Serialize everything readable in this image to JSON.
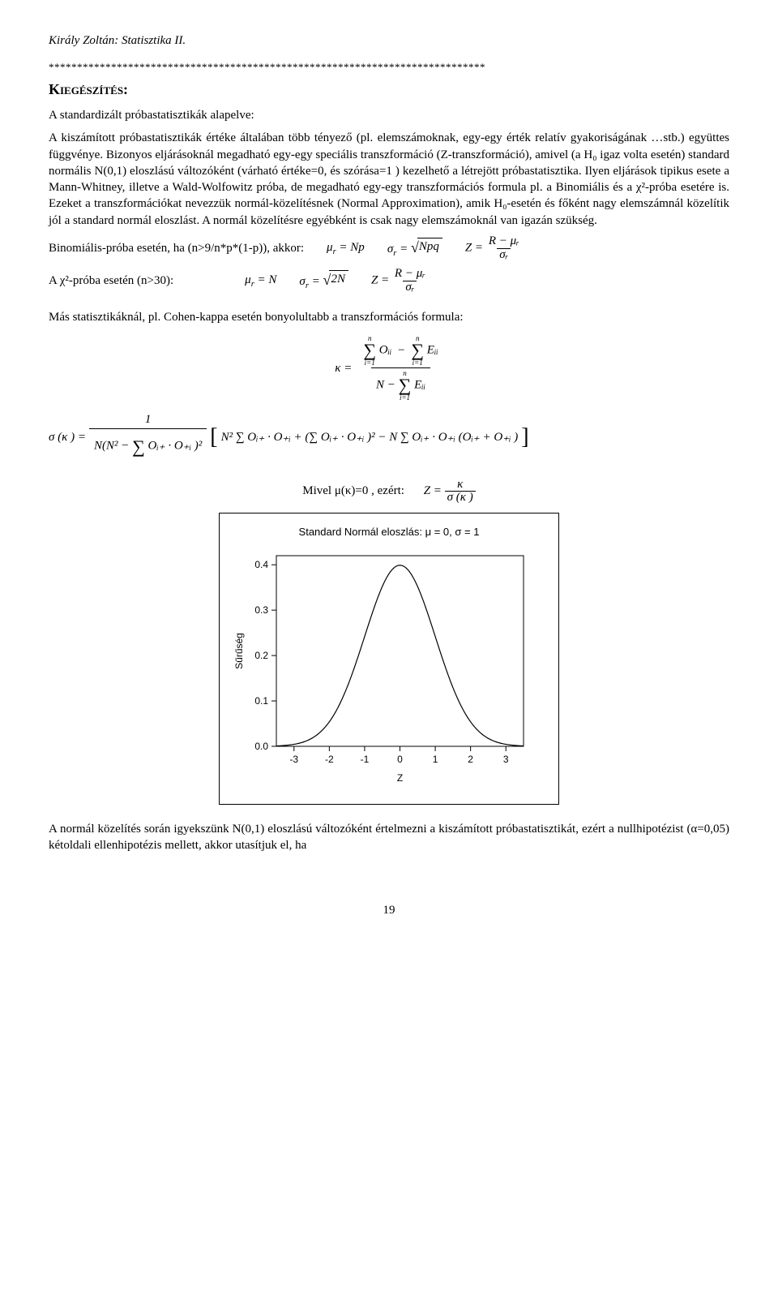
{
  "header": {
    "running_title": "Király Zoltán: Statisztika II."
  },
  "sep": {
    "stars": "*****************************************************************************"
  },
  "section": {
    "title": "Kiegészítés:"
  },
  "intro": {
    "line1": "A standardizált próbastatisztikák alapelve:",
    "body": "A kiszámított próbastatisztikák értéke általában több tényező (pl. elemszámoknak, egy-egy érték relatív gyakoriságának …stb.) együttes függvénye. Bizonyos eljárásoknál megadható egy-egy speciális transzformáció (Z-transzformáció), amivel (a H₀ igaz volta esetén) standard normális N(0,1) eloszlású változóként (várható értéke=0, és szórása=1 ) kezelhető a létrejött próbastatisztika. Ilyen eljárások tipikus esete a Mann-Whitney, illetve a Wald-Wolfowitz próba, de megadható egy-egy transzformációs formula pl. a Binomiális és a χ²-próba esetére is. Ezeket a transzformációkat nevezzük normál-közelítésnek (Normal Approximation), amik H₀-esetén és főként nagy elemszámnál közelítik jól a standard normál eloszlást. A normál közelítésre egyébként is csak nagy elemszámoknál van igazán szükség."
  },
  "binom": {
    "lead": "Binomiális-próba esetén, ha (n>9/n*p*(1-p)), akkor:",
    "mu": "μ",
    "mu_sub": "r",
    "mu_eq": "= Np",
    "sigma": "σ",
    "sigma_sub": "r",
    "sigma_eq_rad": "Npq",
    "Z": "Z =",
    "Z_num": "R − μᵣ",
    "Z_den": "σᵣ"
  },
  "chi": {
    "lead": "A χ²-próba esetén (n>30):",
    "mu": "μ",
    "mu_sub": "r",
    "mu_eq": "= N",
    "sigma": "σ",
    "sigma_sub": "r",
    "sigma_rad": "2N",
    "Z": "Z =",
    "Z_num": "R − μᵣ",
    "Z_den": "σᵣ"
  },
  "other": {
    "lead": "Más statisztikáknál, pl. Cohen-kappa esetén bonyolultabb a transzformációs formula:"
  },
  "kappa": {
    "lhs": "κ =",
    "num_a_top": "n",
    "num_a_bot": "i=1",
    "num_a_body": "Oᵢᵢ",
    "minus": "−",
    "num_b_top": "n",
    "num_b_bot": "i=1",
    "num_b_body": "Eᵢᵢ",
    "den_lead": "N −",
    "den_top": "n",
    "den_bot": "i=1",
    "den_body": "Eᵢᵢ"
  },
  "sigmakappa": {
    "lhs": "σ (κ ) =",
    "frac_num": "1",
    "frac_den_a": "N(N² −",
    "frac_den_sum": "Oᵢ₊ · O₊ᵢ )²",
    "br_a": "N² ∑ Oᵢ₊ · O₊ᵢ + (∑ Oᵢ₊ · O₊ᵢ )² − N ∑ Oᵢ₊ · O₊ᵢ (Oᵢ₊ + O₊ᵢ )"
  },
  "mivel": {
    "lead": "Mivel μ(κ)=0 , ezért:",
    "Z": "Z =",
    "num": "κ",
    "den": "σ (κ )"
  },
  "chart": {
    "title_a": "Standard Normál eloszlás: ",
    "title_b": "μ",
    "title_c": " = 0, ",
    "title_d": "σ",
    "title_e": " = 1",
    "ylabel": "Sűrűség",
    "xlabel": "Z",
    "xticks": [
      "-3",
      "-2",
      "-1",
      "0",
      "1",
      "2",
      "3"
    ],
    "yticks": [
      "0.0",
      "0.1",
      "0.2",
      "0.3",
      "0.4"
    ],
    "xlim": [
      -3.5,
      3.5
    ],
    "ylim": [
      0,
      0.42
    ],
    "line_color": "#000000",
    "border_color": "#000000",
    "background": "#ffffff"
  },
  "closing": {
    "text": "A normál közelítés során igyekszünk N(0,1) eloszlású változóként értelmezni a kiszámított próbastatisztikát, ezért a nullhipotézist (α=0,05) kétoldali ellenhipotézis mellett, akkor utasítjuk el, ha"
  },
  "page": {
    "number": "19"
  }
}
